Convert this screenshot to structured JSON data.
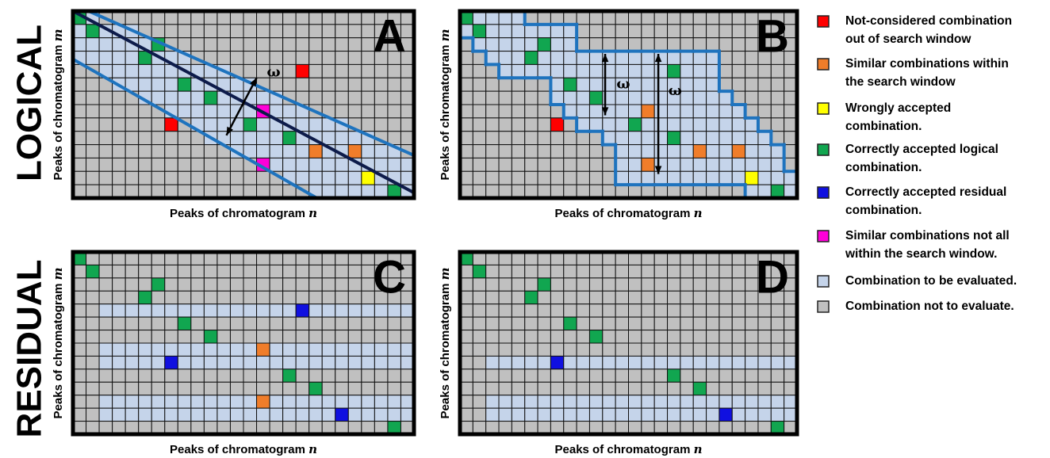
{
  "row_labels": [
    "LOGICAL",
    "RESIDUAL"
  ],
  "panels": [
    {
      "letter": "A",
      "x_label": {
        "text": "Peaks of chromatogram",
        "var": "n"
      },
      "y_label": {
        "text": "Peaks of chromatogram",
        "var": "m"
      },
      "omega": [
        "ω"
      ]
    },
    {
      "letter": "B",
      "x_label": {
        "text": "Peaks of chromatogram",
        "var": "n"
      },
      "y_label": {
        "text": "Peaks of chromatogram",
        "var": "m"
      },
      "omega": [
        "ω",
        "ω"
      ]
    },
    {
      "letter": "C",
      "x_label": {
        "text": "Peaks of chromatogram",
        "var": "n"
      },
      "y_label": {
        "text": "Peaks of chromatogram",
        "var": "m"
      },
      "omega": []
    },
    {
      "letter": "D",
      "x_label": {
        "text": "Peaks of chromatogram",
        "var": "n"
      },
      "y_label": {
        "text": "Peaks of chromatogram",
        "var": "m"
      },
      "omega": []
    }
  ],
  "legend": [
    {
      "color": "#ff0000",
      "lines": [
        "Not-considered combination",
        "out of search window"
      ]
    },
    {
      "color": "#f07d2a",
      "lines": [
        "Similar combinations within",
        "the search window"
      ]
    },
    {
      "color": "#ffff00",
      "lines": [
        "Wrongly accepted",
        "combination."
      ]
    },
    {
      "color": "#11a650",
      "lines": [
        "Correctly accepted logical",
        "combination."
      ]
    },
    {
      "color": "#1010e0",
      "lines": [
        "Correctly accepted residual",
        "combination."
      ]
    },
    {
      "color": "#ff00d8",
      "lines": [
        "Similar combinations not all",
        "within the search window."
      ]
    },
    {
      "color": "#c5d4ea",
      "lines": [
        "Combination to be evaluated."
      ]
    },
    {
      "color": "#c0c0c0",
      "lines": [
        "Combination not to evaluate."
      ]
    }
  ]
}
